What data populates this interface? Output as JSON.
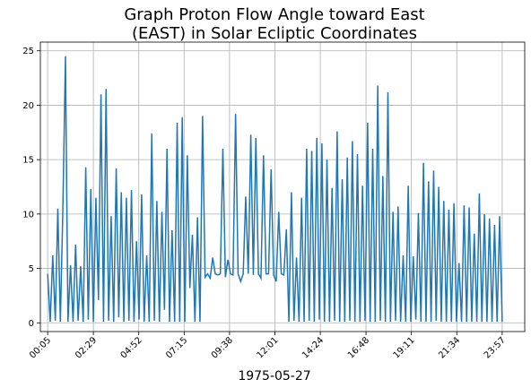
{
  "chart_data": {
    "type": "line",
    "title": [
      "Graph Proton Flow Angle toward East",
      "(EAST) in Solar Ecliptic Coordinates"
    ],
    "xlabel": "1975-05-27",
    "x": [
      5,
      13,
      21,
      29,
      37,
      45,
      53,
      61,
      69,
      77,
      85,
      93,
      101,
      109,
      117,
      125,
      133,
      141,
      149,
      157,
      165,
      173,
      181,
      189,
      197,
      205,
      213,
      221,
      229,
      237,
      245,
      253,
      261,
      269,
      277,
      285,
      293,
      301,
      309,
      317,
      325,
      333,
      341,
      349,
      357,
      365,
      373,
      381,
      389,
      397,
      405,
      413,
      421,
      429,
      437,
      445,
      453,
      461,
      469,
      477,
      485,
      493,
      501,
      509,
      517,
      525,
      533,
      541,
      549,
      557,
      565,
      573,
      581,
      589,
      597,
      605,
      613,
      621,
      629,
      637,
      645,
      653,
      661,
      669,
      677,
      685,
      693,
      701,
      709,
      717,
      725,
      733,
      741,
      749,
      757,
      765,
      773,
      781,
      789,
      797,
      805,
      813,
      821,
      829,
      837,
      845,
      853,
      861,
      869,
      877,
      885,
      893,
      901,
      909,
      917,
      925,
      933,
      941,
      949,
      957,
      965,
      973,
      981,
      989,
      997,
      1005,
      1013,
      1021,
      1029,
      1037,
      1045,
      1053,
      1061,
      1069,
      1077,
      1085,
      1093,
      1101,
      1109,
      1117,
      1125,
      1133,
      1141,
      1149,
      1157,
      1165,
      1173,
      1181,
      1189,
      1197,
      1205,
      1213,
      1221,
      1229,
      1237,
      1245,
      1253,
      1261,
      1269,
      1277,
      1285,
      1293,
      1301,
      1309,
      1317,
      1325,
      1333,
      1341,
      1349,
      1357,
      1365,
      1373,
      1381,
      1389,
      1397,
      1405,
      1413,
      1421,
      1429,
      1437
    ],
    "series": [
      {
        "name": "EAST",
        "color": "#1f77b4",
        "values": [
          4.5,
          0.1,
          6.2,
          0.2,
          10.5,
          0.1,
          10.6,
          24.5,
          0.1,
          5.3,
          0.1,
          7.2,
          0.2,
          5.2,
          0.1,
          14.3,
          0.3,
          12.3,
          0.1,
          11.5,
          2.1,
          21.0,
          0.1,
          21.5,
          0.2,
          9.8,
          0.1,
          14.2,
          0.5,
          12.0,
          0.1,
          11.5,
          0.2,
          12.2,
          0.1,
          7.5,
          0.3,
          11.8,
          0.1,
          6.2,
          0.1,
          17.4,
          0.2,
          11.2,
          0.1,
          10.2,
          1.2,
          16.0,
          0.1,
          8.5,
          0.1,
          18.4,
          0.1,
          18.9,
          0.1,
          15.4,
          3.2,
          8.1,
          0.1,
          9.7,
          0.1,
          19.0,
          4.2,
          4.5,
          4.1,
          6.0,
          4.5,
          4.4,
          4.5,
          16.0,
          4.2,
          5.8,
          4.5,
          4.4,
          19.2,
          4.5,
          3.8,
          4.5,
          11.6,
          4.5,
          17.3,
          4.4,
          17.0,
          4.5,
          4.1,
          15.4,
          4.5,
          4.5,
          14.1,
          4.4,
          3.8,
          10.2,
          4.5,
          4.4,
          8.6,
          0.1,
          12.0,
          0.2,
          6.0,
          0.1,
          11.5,
          0.1,
          16.0,
          0.2,
          15.8,
          0.1,
          17.0,
          0.3,
          16.5,
          0.1,
          15.0,
          0.1,
          12.4,
          0.2,
          17.6,
          0.1,
          13.2,
          0.1,
          15.2,
          0.2,
          16.7,
          0.1,
          15.5,
          0.1,
          12.6,
          0.2,
          18.4,
          0.1,
          16.0,
          0.1,
          21.8,
          0.2,
          13.5,
          0.1,
          21.2,
          0.1,
          10.2,
          0.2,
          10.7,
          0.1,
          6.2,
          0.1,
          12.6,
          0.1,
          6.1,
          0.3,
          10.1,
          0.1,
          14.7,
          0.1,
          13.0,
          0.1,
          14.0,
          0.2,
          12.5,
          0.1,
          11.2,
          0.1,
          10.4,
          0.1,
          11.0,
          0.1,
          5.5,
          0.1,
          10.8,
          0.1,
          10.6,
          0.1,
          8.2,
          0.1,
          11.9,
          0.1,
          10.0,
          0.1,
          9.6,
          0.1,
          9.0,
          0.1,
          9.8,
          0.1
        ]
      }
    ],
    "xlim": [
      -18,
      1508
    ],
    "xticks": [
      {
        "value": 5,
        "label": "00:05"
      },
      {
        "value": 149,
        "label": "02:29"
      },
      {
        "value": 292,
        "label": "04:52"
      },
      {
        "value": 435,
        "label": "07:15"
      },
      {
        "value": 578,
        "label": "09:38"
      },
      {
        "value": 721,
        "label": "12:01"
      },
      {
        "value": 864,
        "label": "14:24"
      },
      {
        "value": 1008,
        "label": "16:48"
      },
      {
        "value": 1151,
        "label": "19:11"
      },
      {
        "value": 1294,
        "label": "21:34"
      },
      {
        "value": 1437,
        "label": "23:57"
      }
    ],
    "ylim": [
      -0.8,
      25.8
    ],
    "yticks": [
      0,
      5,
      10,
      15,
      20,
      25
    ],
    "grid": true
  }
}
